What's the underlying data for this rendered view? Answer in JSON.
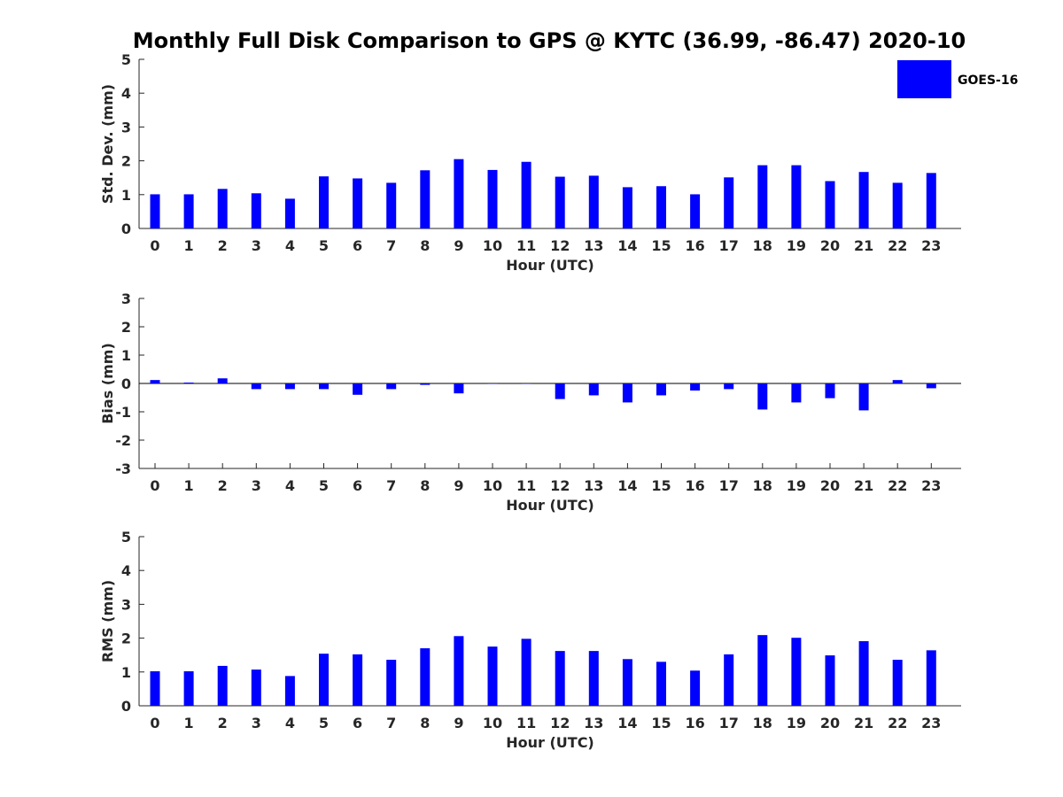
{
  "chart_data": {
    "title": "Monthly Full Disk Comparison to GPS @ KYTC (36.99, -86.47) 2020-10",
    "legend": {
      "entries": [
        "GOES-16"
      ],
      "placement": "top-right"
    },
    "bar_color": "#0000ff",
    "type": "bar",
    "panels": [
      {
        "type": "bar",
        "xlabel": "Hour (UTC)",
        "ylabel": "Std. Dev. (mm)",
        "ylim": [
          0,
          5
        ],
        "yticks": [
          "0",
          "1",
          "2",
          "3",
          "4",
          "5"
        ],
        "categories": [
          "0",
          "1",
          "2",
          "3",
          "4",
          "5",
          "6",
          "7",
          "8",
          "9",
          "10",
          "11",
          "12",
          "13",
          "14",
          "15",
          "16",
          "17",
          "18",
          "19",
          "20",
          "21",
          "22",
          "23"
        ],
        "series": [
          {
            "name": "GOES-16",
            "values": [
              1.01,
              1.01,
              1.17,
              1.04,
              0.88,
              1.54,
              1.48,
              1.35,
              1.72,
              2.05,
              1.73,
              1.97,
              1.53,
              1.56,
              1.22,
              1.25,
              1.01,
              1.51,
              1.87,
              1.87,
              1.4,
              1.67,
              1.35,
              1.64
            ]
          }
        ]
      },
      {
        "type": "bar",
        "xlabel": "Hour (UTC)",
        "ylabel": "Bias (mm)",
        "ylim": [
          -3,
          3
        ],
        "yticks": [
          "-3",
          "-2",
          "-1",
          "0",
          "1",
          "2",
          "3"
        ],
        "categories": [
          "0",
          "1",
          "2",
          "3",
          "4",
          "5",
          "6",
          "7",
          "8",
          "9",
          "10",
          "11",
          "12",
          "13",
          "14",
          "15",
          "16",
          "17",
          "18",
          "19",
          "20",
          "21",
          "22",
          "23"
        ],
        "series": [
          {
            "name": "GOES-16",
            "values": [
              0.12,
              0.03,
              0.18,
              -0.2,
              -0.2,
              -0.2,
              -0.4,
              -0.2,
              -0.05,
              -0.35,
              -0.01,
              0.0,
              -0.55,
              -0.42,
              -0.67,
              -0.42,
              -0.25,
              -0.2,
              -0.92,
              -0.67,
              -0.52,
              -0.95,
              0.12,
              -0.17
            ]
          }
        ]
      },
      {
        "type": "bar",
        "xlabel": "Hour (UTC)",
        "ylabel": "RMS (mm)",
        "ylim": [
          0,
          5
        ],
        "yticks": [
          "0",
          "1",
          "2",
          "3",
          "4",
          "5"
        ],
        "categories": [
          "0",
          "1",
          "2",
          "3",
          "4",
          "5",
          "6",
          "7",
          "8",
          "9",
          "10",
          "11",
          "12",
          "13",
          "14",
          "15",
          "16",
          "17",
          "18",
          "19",
          "20",
          "21",
          "22",
          "23"
        ],
        "series": [
          {
            "name": "GOES-16",
            "values": [
              1.02,
              1.02,
              1.18,
              1.07,
              0.88,
              1.54,
              1.52,
              1.36,
              1.7,
              2.06,
              1.75,
              1.98,
              1.62,
              1.62,
              1.38,
              1.3,
              1.04,
              1.52,
              2.09,
              2.01,
              1.49,
              1.91,
              1.36,
              1.64
            ]
          }
        ]
      }
    ]
  }
}
